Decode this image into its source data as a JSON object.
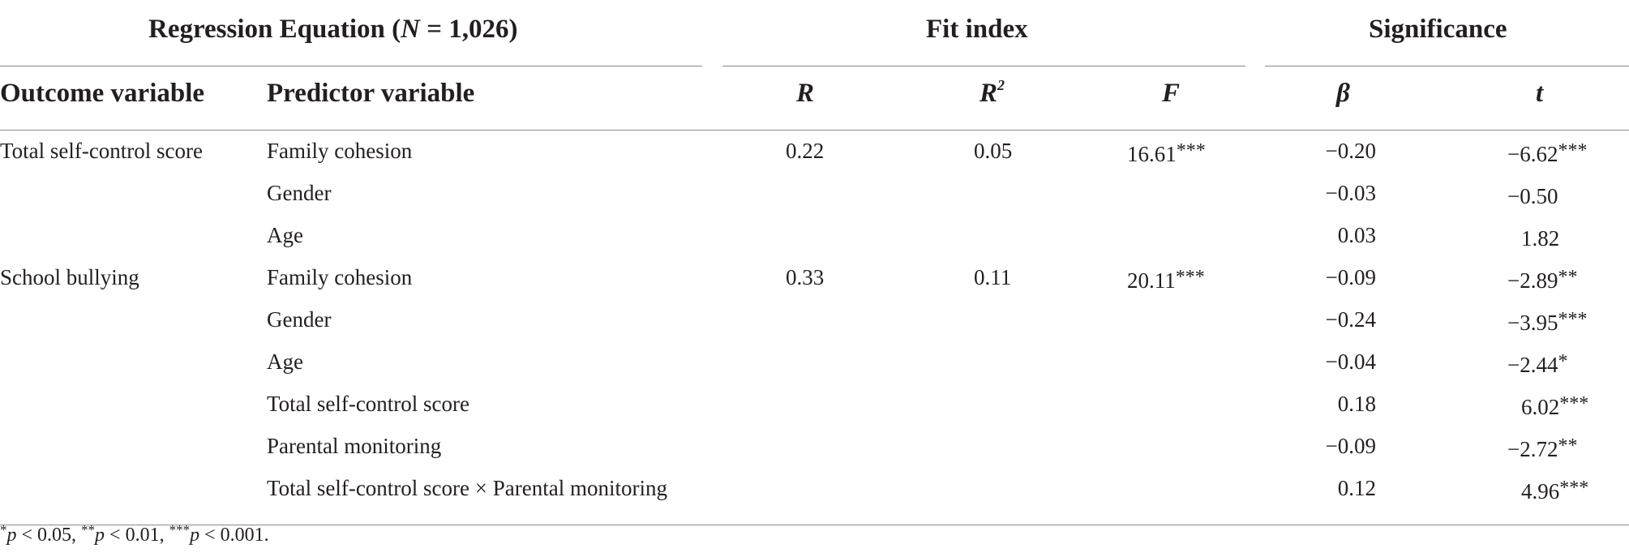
{
  "group_headers": {
    "regression_prefix": "Regression Equation (",
    "regression_n": "N",
    "regression_suffix": " = 1,026)",
    "fit": "Fit index",
    "significance": "Significance"
  },
  "column_headers": {
    "outcome": "Outcome variable",
    "predictor": "Predictor variable",
    "r": "R",
    "r2_base": "R",
    "r2_sup": "2",
    "f": "F",
    "beta": "β",
    "t": "t"
  },
  "rows": [
    {
      "outcome": "Total self-control score",
      "predictor": "Family cohesion",
      "r": "0.22",
      "r2": "0.05",
      "f": "16.61",
      "f_stars": "***",
      "beta": "−0.20",
      "t": "−6.62",
      "t_stars": "***"
    },
    {
      "outcome": "",
      "predictor": "Gender",
      "r": "",
      "r2": "",
      "f": "",
      "f_stars": "",
      "beta": "−0.03",
      "t": "−0.50",
      "t_stars": ""
    },
    {
      "outcome": "",
      "predictor": "Age",
      "r": "",
      "r2": "",
      "f": "",
      "f_stars": "",
      "beta": "0.03",
      "t": "1.82",
      "t_stars": ""
    },
    {
      "outcome": "School bullying",
      "predictor": "Family cohesion",
      "r": "0.33",
      "r2": "0.11",
      "f": "20.11",
      "f_stars": "***",
      "beta": "−0.09",
      "t": "−2.89",
      "t_stars": "**"
    },
    {
      "outcome": "",
      "predictor": "Gender",
      "r": "",
      "r2": "",
      "f": "",
      "f_stars": "",
      "beta": "−0.24",
      "t": "−3.95",
      "t_stars": "***"
    },
    {
      "outcome": "",
      "predictor": "Age",
      "r": "",
      "r2": "",
      "f": "",
      "f_stars": "",
      "beta": "−0.04",
      "t": "−2.44",
      "t_stars": "*"
    },
    {
      "outcome": "",
      "predictor": "Total self-control score",
      "r": "",
      "r2": "",
      "f": "",
      "f_stars": "",
      "beta": "0.18",
      "t": "6.02",
      "t_stars": "***"
    },
    {
      "outcome": "",
      "predictor": "Parental monitoring",
      "r": "",
      "r2": "",
      "f": "",
      "f_stars": "",
      "beta": "−0.09",
      "t": "−2.72",
      "t_stars": "**"
    },
    {
      "outcome": "",
      "predictor": "Total self-control score × Parental monitoring",
      "r": "",
      "r2": "",
      "f": "",
      "f_stars": "",
      "beta": "0.12",
      "t": "4.96",
      "t_stars": "***"
    }
  ],
  "footnote": {
    "s1": "*",
    "p1": "p",
    "t1": " < 0.05, ",
    "s2": "**",
    "p2": "p",
    "t2": " < 0.01, ",
    "s3": "***",
    "p3": "p",
    "t3": " < 0.001."
  }
}
